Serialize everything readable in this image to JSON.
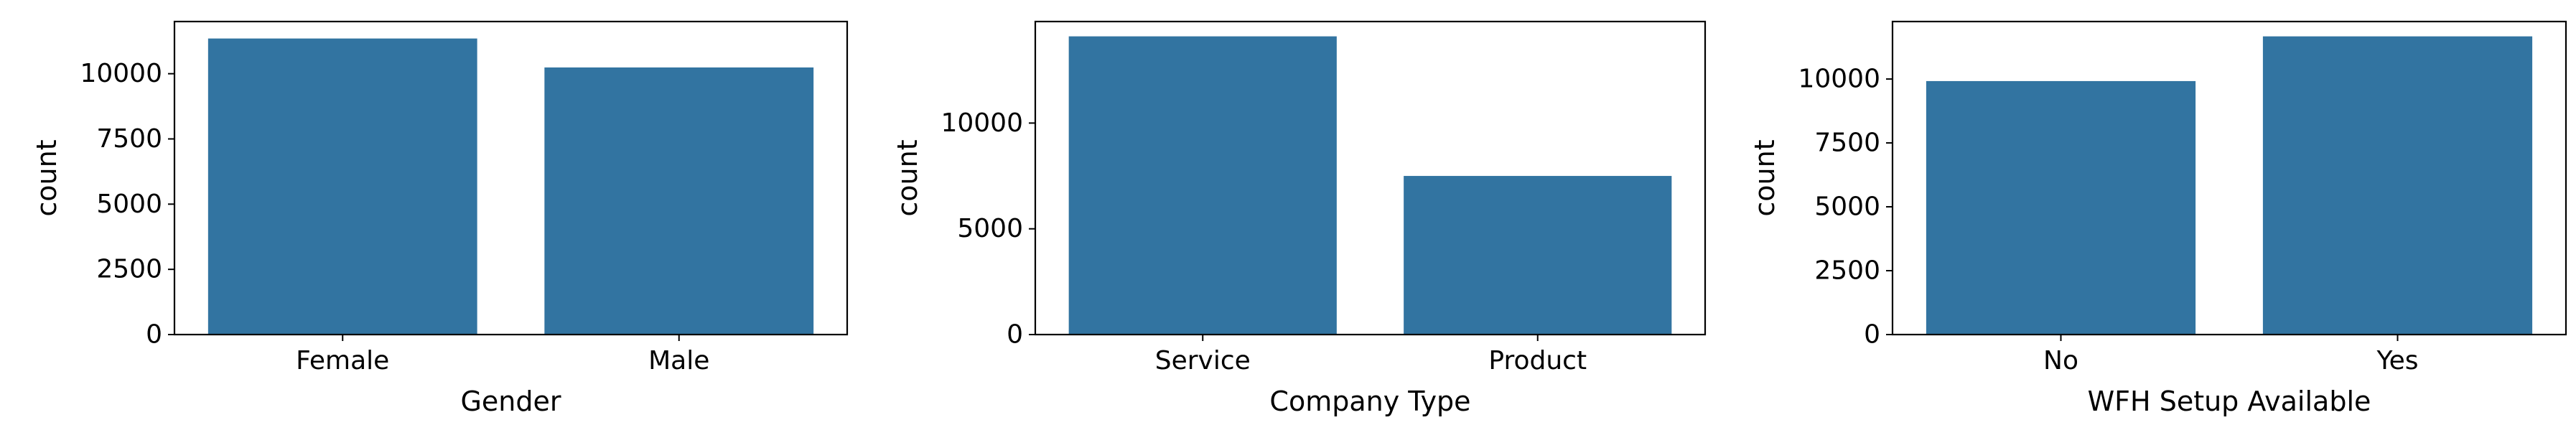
{
  "chart_data": [
    {
      "type": "bar",
      "categories": [
        "Female",
        "Male"
      ],
      "values": [
        11350,
        10240
      ],
      "xlabel": "Gender",
      "ylabel": "count",
      "ylim": [
        0,
        12000
      ],
      "yticks": [
        0,
        2500,
        5000,
        7500,
        10000
      ],
      "ytick_labels": [
        "0",
        "2500",
        "5000",
        "7500",
        "10000"
      ],
      "bar_color": "#3274a1",
      "grid": false
    },
    {
      "type": "bar",
      "categories": [
        "Service",
        "Product"
      ],
      "values": [
        14100,
        7500
      ],
      "xlabel": "Company Type",
      "ylabel": "count",
      "ylim": [
        0,
        14800
      ],
      "yticks": [
        0,
        5000,
        10000
      ],
      "ytick_labels": [
        "0",
        "5000",
        "10000"
      ],
      "bar_color": "#3274a1",
      "grid": false
    },
    {
      "type": "bar",
      "categories": [
        "No",
        "Yes"
      ],
      "values": [
        9920,
        11670
      ],
      "xlabel": "WFH Setup Available",
      "ylabel": "count",
      "ylim": [
        0,
        12250
      ],
      "yticks": [
        0,
        2500,
        5000,
        7500,
        10000
      ],
      "ytick_labels": [
        "0",
        "2500",
        "5000",
        "7500",
        "10000"
      ],
      "bar_color": "#3274a1",
      "grid": false
    }
  ]
}
